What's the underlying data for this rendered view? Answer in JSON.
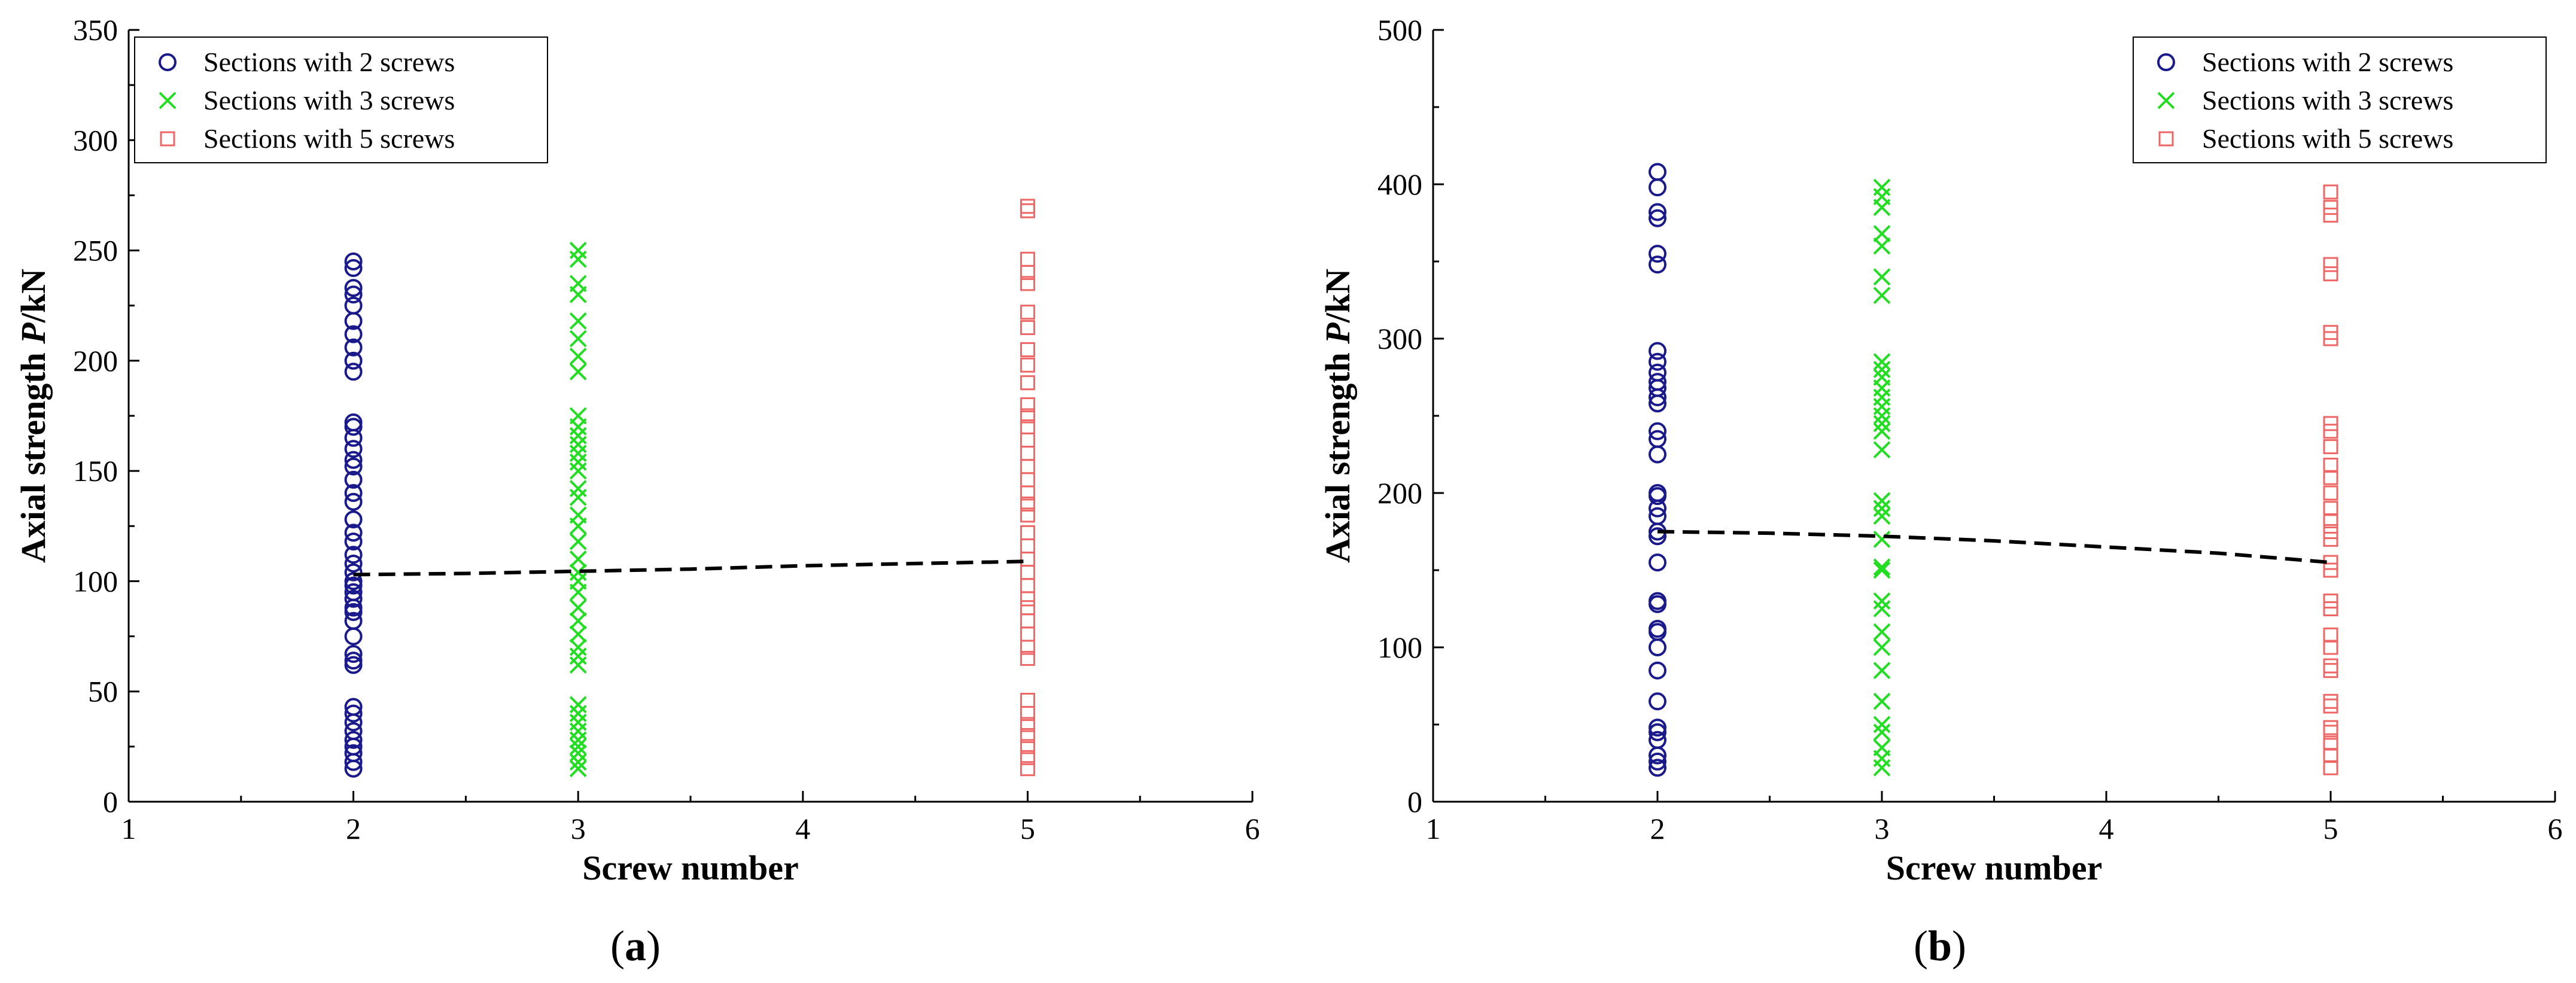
{
  "figure": {
    "panels": [
      {
        "label_prefix": "(",
        "label_letter": "a",
        "label_suffix": ")"
      },
      {
        "label_prefix": "(",
        "label_letter": "b",
        "label_suffix": ")"
      }
    ]
  },
  "colors": {
    "series_2_screws": "#1a1a8c",
    "series_3_screws": "#22dd22",
    "series_5_screws": "#ee6666",
    "trend_line": "#000000",
    "axes": "#000000"
  },
  "chart_data": [
    {
      "type": "scatter",
      "panel": "(a)",
      "xlabel": "Screw number",
      "ylabel_prefix": "Axial strength ",
      "ylabel_var": "P",
      "ylabel_unit": "/kN",
      "xlim": [
        1,
        6
      ],
      "ylim": [
        0,
        350
      ],
      "xticks": [
        1,
        2,
        3,
        4,
        5,
        6
      ],
      "yticks": [
        0,
        50,
        100,
        150,
        200,
        250,
        300,
        350
      ],
      "grid": false,
      "legend_position": "top-left",
      "series": [
        {
          "name": "Sections with 2 screws",
          "marker": "circle",
          "color": "#1a1a8c",
          "x": 2,
          "y": [
            15,
            18,
            22,
            25,
            28,
            32,
            36,
            40,
            43,
            62,
            64,
            67,
            75,
            82,
            86,
            88,
            92,
            95,
            98,
            100,
            104,
            108,
            112,
            118,
            122,
            128,
            136,
            140,
            146,
            152,
            155,
            160,
            165,
            170,
            172,
            195,
            200,
            206,
            212,
            218,
            225,
            230,
            233,
            242,
            245
          ]
        },
        {
          "name": "Sections with 3 screws",
          "marker": "x",
          "color": "#22dd22",
          "x": 3,
          "y": [
            15,
            18,
            22,
            25,
            28,
            32,
            36,
            40,
            44,
            62,
            66,
            70,
            76,
            82,
            88,
            95,
            100,
            104,
            110,
            118,
            125,
            130,
            138,
            142,
            150,
            154,
            158,
            162,
            166,
            170,
            175,
            195,
            202,
            210,
            218,
            230,
            235,
            246,
            250
          ]
        },
        {
          "name": "Sections with 5 screws",
          "marker": "square",
          "color": "#ee6666",
          "x": 5,
          "y": [
            15,
            20,
            25,
            30,
            35,
            40,
            46,
            65,
            70,
            76,
            82,
            88,
            92,
            98,
            104,
            110,
            116,
            122,
            130,
            135,
            140,
            146,
            152,
            158,
            164,
            170,
            175,
            180,
            190,
            198,
            205,
            215,
            222,
            235,
            240,
            246,
            268,
            270
          ]
        }
      ],
      "trend_line": {
        "style": "dashed",
        "points": [
          [
            2,
            103
          ],
          [
            2.5,
            103.5
          ],
          [
            3,
            104.5
          ],
          [
            3.5,
            105.5
          ],
          [
            4,
            107
          ],
          [
            4.5,
            108
          ],
          [
            5,
            109
          ]
        ]
      }
    },
    {
      "type": "scatter",
      "panel": "(b)",
      "xlabel": "Screw number",
      "ylabel_prefix": "Axial strength ",
      "ylabel_var": "P",
      "ylabel_unit": "/kN",
      "xlim": [
        1,
        6
      ],
      "ylim": [
        0,
        500
      ],
      "xticks": [
        1,
        2,
        3,
        4,
        5,
        6
      ],
      "yticks": [
        0,
        100,
        200,
        300,
        400,
        500
      ],
      "grid": false,
      "legend_position": "top-right",
      "series": [
        {
          "name": "Sections with 2 screws",
          "marker": "circle",
          "color": "#1a1a8c",
          "x": 2,
          "y": [
            22,
            26,
            30,
            40,
            45,
            48,
            65,
            85,
            100,
            110,
            112,
            128,
            130,
            155,
            172,
            175,
            185,
            190,
            198,
            200,
            225,
            235,
            240,
            258,
            262,
            268,
            272,
            278,
            285,
            292,
            348,
            355,
            378,
            382,
            398,
            408
          ]
        },
        {
          "name": "Sections with 3 screws",
          "marker": "x",
          "color": "#22dd22",
          "x": 3,
          "y": [
            22,
            28,
            35,
            45,
            50,
            65,
            85,
            100,
            110,
            125,
            130,
            150,
            152,
            170,
            185,
            190,
            195,
            228,
            240,
            245,
            250,
            256,
            262,
            268,
            275,
            280,
            285,
            328,
            340,
            360,
            368,
            385,
            392,
            398
          ]
        },
        {
          "name": "Sections with 5 screws",
          "marker": "square",
          "color": "#ee6666",
          "x": 5,
          "y": [
            22,
            30,
            38,
            45,
            48,
            62,
            65,
            85,
            88,
            100,
            108,
            125,
            130,
            150,
            155,
            170,
            175,
            182,
            190,
            200,
            210,
            218,
            230,
            240,
            245,
            300,
            304,
            342,
            348,
            380,
            385,
            395
          ]
        }
      ],
      "trend_line": {
        "style": "dashed",
        "points": [
          [
            2,
            175
          ],
          [
            2.5,
            174
          ],
          [
            3,
            172
          ],
          [
            3.5,
            169
          ],
          [
            4,
            165
          ],
          [
            4.5,
            161
          ],
          [
            5,
            155
          ]
        ]
      }
    }
  ]
}
